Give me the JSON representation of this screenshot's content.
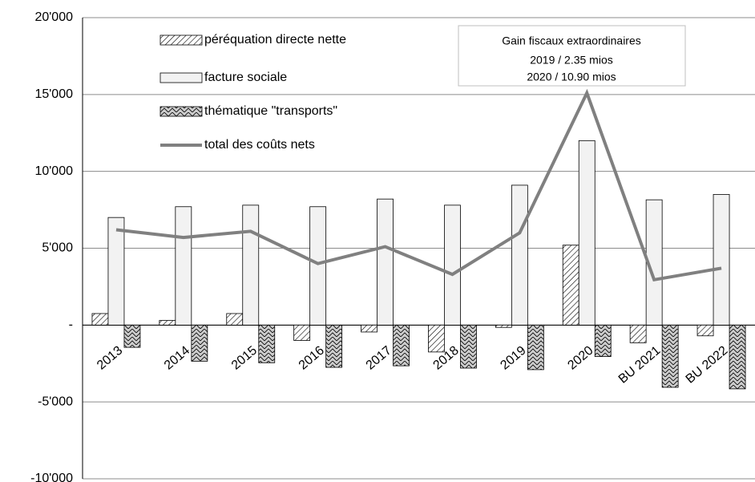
{
  "chart_data": {
    "type": "bar-line",
    "categories": [
      "2013",
      "2014",
      "2015",
      "2016",
      "2017",
      "2018",
      "2019",
      "2020",
      "BU 2021",
      "BU 2022"
    ],
    "series": [
      {
        "name": "péréquation directe nette",
        "type": "bar",
        "pattern": "hatch",
        "color": "#000000",
        "values": [
          750,
          300,
          750,
          -1000,
          -450,
          -1750,
          -150,
          5200,
          -1150,
          -700
        ]
      },
      {
        "name": "facture sociale",
        "type": "bar",
        "pattern": "solid",
        "color": "#f2f2f2",
        "values": [
          7000,
          7700,
          7800,
          7700,
          8200,
          7800,
          9100,
          12000,
          8150,
          8500
        ]
      },
      {
        "name": "thématique \"transports\"",
        "type": "bar",
        "pattern": "zigzag",
        "color": "#cccccc",
        "values": [
          -1450,
          -2350,
          -2450,
          -2750,
          -2650,
          -2800,
          -2900,
          -2050,
          -4050,
          -4150
        ]
      },
      {
        "name": "total des coûts nets",
        "type": "line",
        "color": "#808080",
        "values": [
          6200,
          5700,
          6100,
          4000,
          5100,
          3300,
          6000,
          15100,
          2950,
          3700
        ]
      }
    ],
    "ylim": [
      -10000,
      20000
    ],
    "yticks": [
      {
        "value": 20000,
        "label": "20'000"
      },
      {
        "value": 15000,
        "label": "15'000"
      },
      {
        "value": 10000,
        "label": "10'000"
      },
      {
        "value": 5000,
        "label": "5'000"
      },
      {
        "value": 0,
        "label": "-"
      },
      {
        "value": -5000,
        "label": "-5'000"
      },
      {
        "value": -10000,
        "label": "-10'000"
      }
    ],
    "grid": true,
    "legend": "top-left",
    "annotation": [
      "Gain fiscaux extraordinaires",
      "2019  /  2.35 mios",
      "2020  /  10.90 mios"
    ]
  }
}
